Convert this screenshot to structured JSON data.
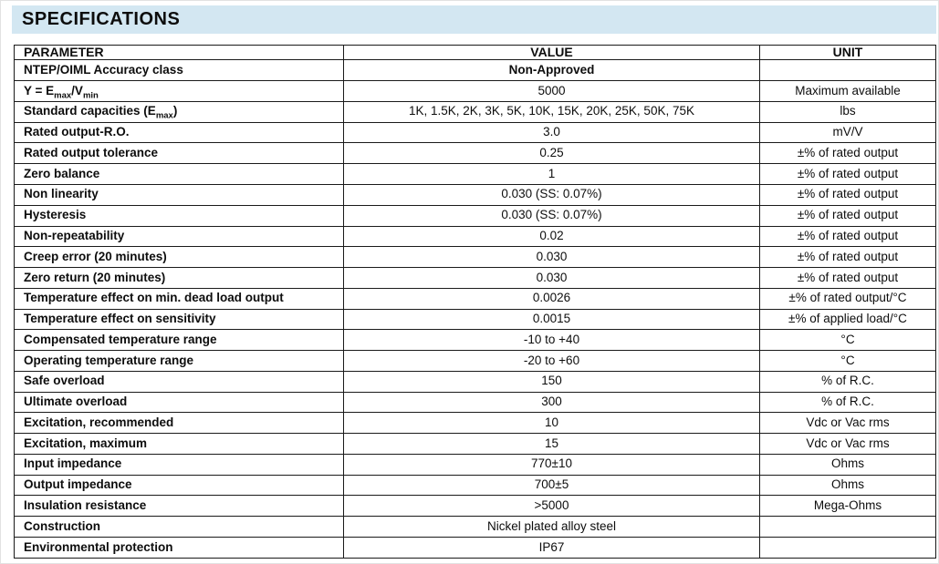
{
  "title": "SPECIFICATIONS",
  "colors": {
    "banner_bg": "#d3e7f2",
    "border": "#1a1a1a"
  },
  "table": {
    "headers": [
      "PARAMETER",
      "VALUE",
      "UNIT"
    ],
    "rows": [
      {
        "parameter": "NTEP/OIML Accuracy class",
        "value": "Non-Approved",
        "value_bold": true,
        "unit": ""
      },
      {
        "parameter": [
          {
            "text": "Y = E"
          },
          {
            "text": "max",
            "sub": true
          },
          {
            "text": "/V"
          },
          {
            "text": "min",
            "sub": true
          }
        ],
        "value": "5000",
        "unit": "Maximum available"
      },
      {
        "parameter": [
          {
            "text": "Standard capacities (E"
          },
          {
            "text": "max",
            "sub": true
          },
          {
            "text": ")"
          }
        ],
        "value": "1K, 1.5K, 2K, 3K, 5K, 10K, 15K, 20K, 25K, 50K, 75K",
        "unit": "lbs"
      },
      {
        "parameter": "Rated output-R.O.",
        "value": "3.0",
        "unit": "mV/V"
      },
      {
        "parameter": "Rated output tolerance",
        "value": "0.25",
        "unit": "±% of rated output"
      },
      {
        "parameter": "Zero balance",
        "value": "1",
        "unit": "±% of rated output"
      },
      {
        "parameter": "Non linearity",
        "value": "0.030 (SS: 0.07%)",
        "unit": "±% of rated output"
      },
      {
        "parameter": "Hysteresis",
        "value": "0.030 (SS: 0.07%)",
        "unit": "±% of rated output"
      },
      {
        "parameter": "Non-repeatability",
        "value": "0.02",
        "unit": "±% of rated output"
      },
      {
        "parameter": "Creep error (20 minutes)",
        "value": "0.030",
        "unit": "±% of rated output"
      },
      {
        "parameter": "Zero return (20 minutes)",
        "value": "0.030",
        "unit": "±% of rated output"
      },
      {
        "parameter": "Temperature effect on min. dead load output",
        "value": "0.0026",
        "unit": "±% of rated output/°C"
      },
      {
        "parameter": "Temperature effect on sensitivity",
        "value": "0.0015",
        "unit": "±% of applied load/°C"
      },
      {
        "parameter": "Compensated temperature range",
        "value": "-10 to +40",
        "unit": "°C"
      },
      {
        "parameter": "Operating temperature range",
        "value": "-20 to +60",
        "unit": "°C"
      },
      {
        "parameter": "Safe overload",
        "value": "150",
        "unit": "% of R.C."
      },
      {
        "parameter": "Ultimate overload",
        "value": "300",
        "unit": "% of R.C."
      },
      {
        "parameter": "Excitation, recommended",
        "value": "10",
        "unit": "Vdc or Vac rms"
      },
      {
        "parameter": "Excitation, maximum",
        "value": "15",
        "unit": "Vdc or Vac rms"
      },
      {
        "parameter": "Input impedance",
        "value": "770±10",
        "unit": "Ohms"
      },
      {
        "parameter": "Output impedance",
        "value": "700±5",
        "unit": "Ohms"
      },
      {
        "parameter": "Insulation resistance",
        "value": ">5000",
        "unit": "Mega-Ohms"
      },
      {
        "parameter": "Construction",
        "value": "Nickel plated alloy steel",
        "unit": ""
      },
      {
        "parameter": "Environmental protection",
        "value": "IP67",
        "unit": ""
      }
    ]
  }
}
